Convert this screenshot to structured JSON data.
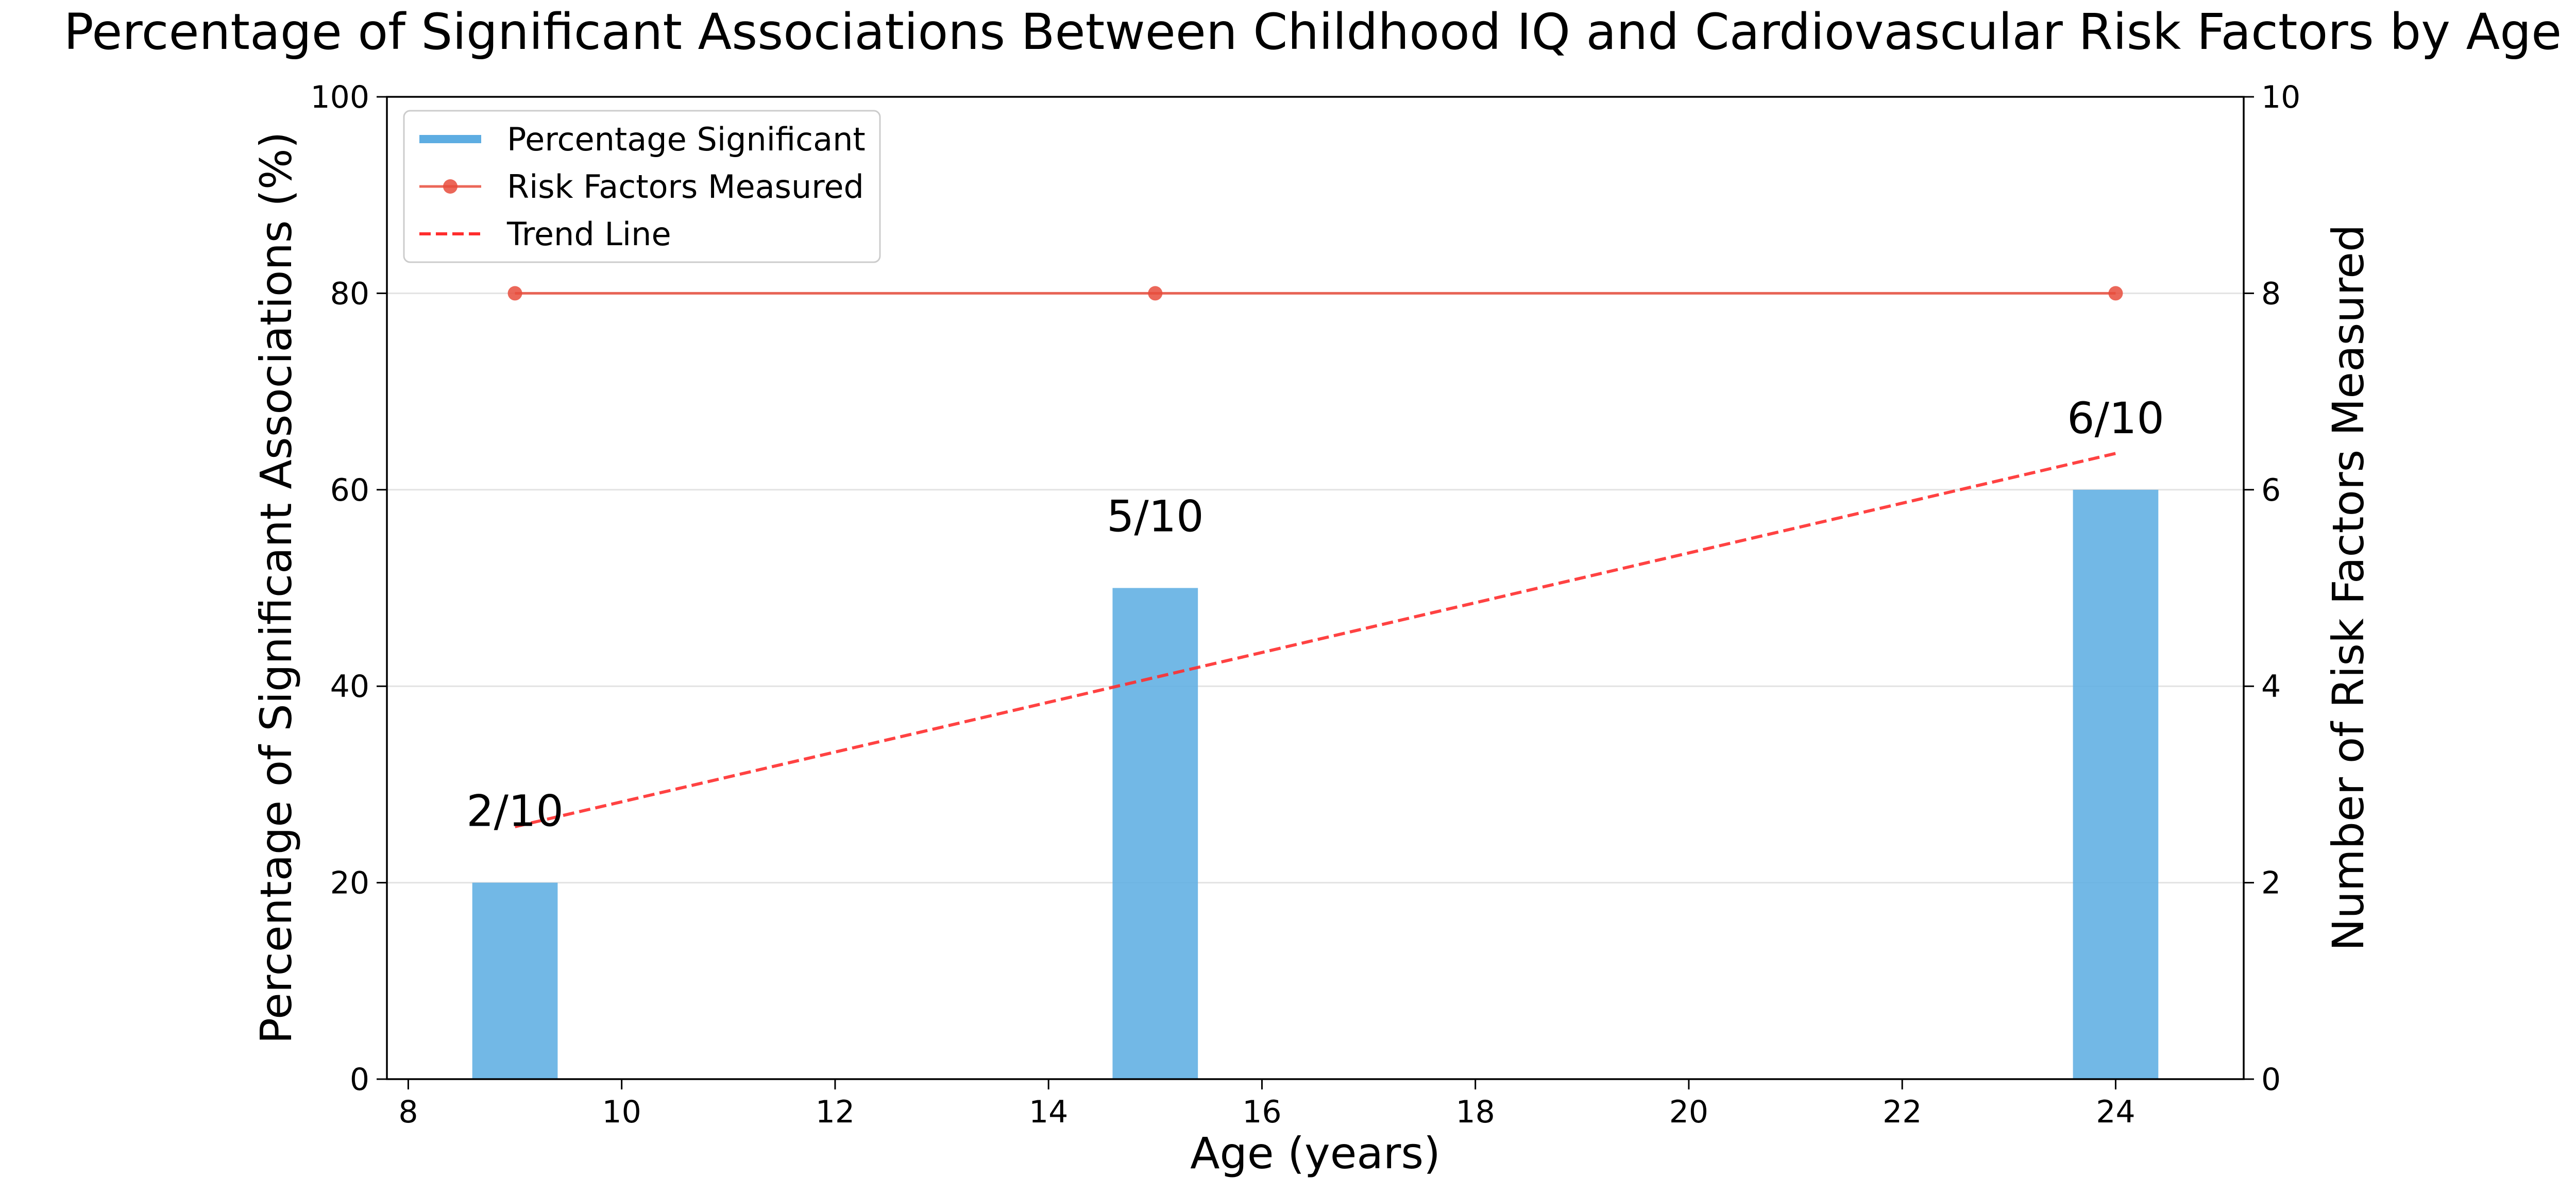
{
  "chart_data": {
    "type": "bar",
    "title": "Percentage of Significant Associations Between Childhood IQ and Cardiovascular Risk Factors by Age",
    "xlabel": "Age (years)",
    "ylabel": "Percentage of Significant Associations (%)",
    "y2label": "Number of Risk Factors Measured",
    "xlim": [
      7.8,
      25.2
    ],
    "ylim": [
      0,
      100
    ],
    "y2lim": [
      0,
      10
    ],
    "x_ticks": [
      8,
      10,
      12,
      14,
      16,
      18,
      20,
      22,
      24
    ],
    "y_ticks": [
      0,
      20,
      40,
      60,
      80,
      100
    ],
    "y2_ticks": [
      0,
      2,
      4,
      6,
      8,
      10
    ],
    "grid": "horizontal",
    "legend_position": "top-left",
    "bar_width": 0.8,
    "series": [
      {
        "name": "Percentage Significant",
        "type": "bar",
        "axis": "left",
        "color": "#5DADE2",
        "x": [
          9,
          15,
          24
        ],
        "values": [
          20,
          50,
          60
        ],
        "labels": [
          "2/10",
          "5/10",
          "6/10"
        ]
      },
      {
        "name": "Risk Factors Measured",
        "type": "line",
        "axis": "right",
        "color": "#E74C3C",
        "marker": "circle",
        "x": [
          9,
          15,
          24
        ],
        "values": [
          8,
          8,
          8
        ]
      },
      {
        "name": "Trend Line",
        "type": "line",
        "axis": "left",
        "color": "#FF2D2D",
        "dashed": true,
        "x": [
          9,
          24
        ],
        "values": [
          25.7,
          63.7
        ]
      }
    ]
  }
}
